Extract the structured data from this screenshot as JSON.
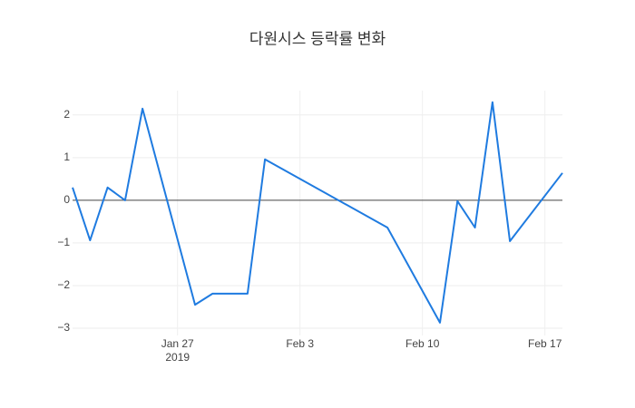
{
  "chart_data": {
    "type": "line",
    "title": "다원시스 등락률 변화",
    "x": [
      "2019-01-21",
      "2019-01-22",
      "2019-01-23",
      "2019-01-24",
      "2019-01-25",
      "2019-01-28",
      "2019-01-29",
      "2019-01-31",
      "2019-02-01",
      "2019-02-08",
      "2019-02-11",
      "2019-02-12",
      "2019-02-13",
      "2019-02-14",
      "2019-02-15",
      "2019-02-18"
    ],
    "values": [
      0.3,
      -0.94,
      0.3,
      0.0,
      2.15,
      -2.45,
      -2.19,
      -2.19,
      0.96,
      -0.64,
      -2.87,
      -0.02,
      -0.64,
      2.3,
      -0.96,
      0.64
    ],
    "color": "#1f7be0",
    "xlim": [
      "2019-01-21",
      "2019-02-18"
    ],
    "xticks": [
      {
        "value": "2019-01-27",
        "label": "Jan 27"
      },
      {
        "value": "2019-02-03",
        "label": "Feb 3"
      },
      {
        "value": "2019-02-10",
        "label": "Feb 10"
      },
      {
        "value": "2019-02-17",
        "label": "Feb 17"
      }
    ],
    "x_year_label": "2019",
    "ylim": [
      -3.17,
      2.57
    ],
    "yticks": [
      {
        "value": -3,
        "label": "−3"
      },
      {
        "value": -2,
        "label": "−2"
      },
      {
        "value": -1,
        "label": "−1"
      },
      0,
      1,
      2
    ],
    "grid": true
  }
}
